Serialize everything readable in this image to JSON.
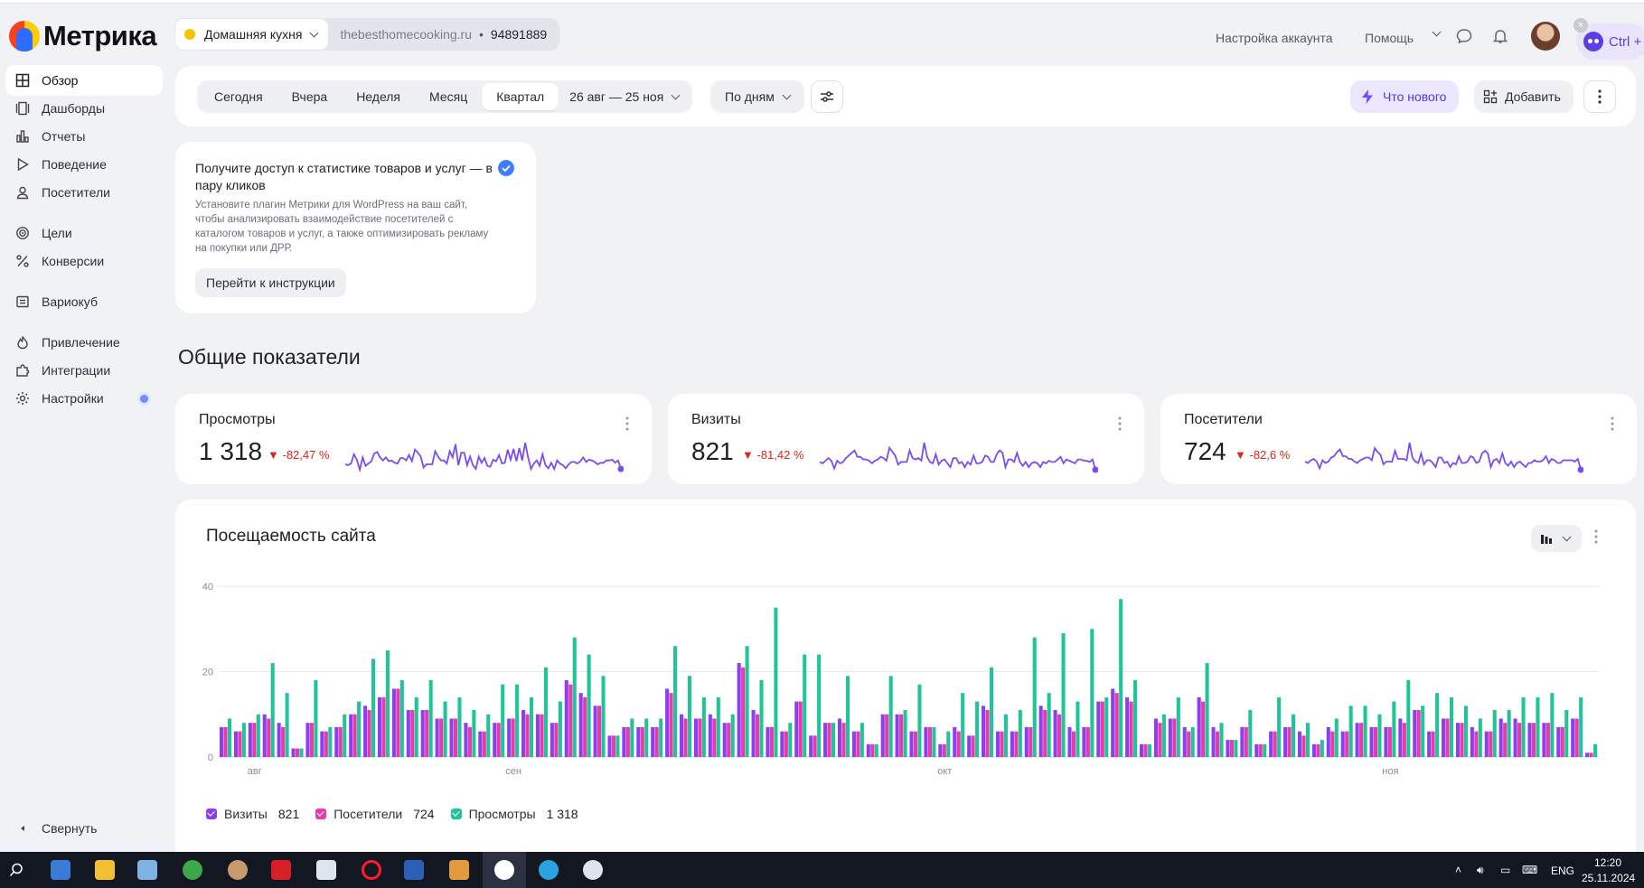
{
  "app": {
    "logo_text": "Метрика"
  },
  "counter": {
    "name": "Домашняя кухня",
    "site": "thebesthomecooking.ru",
    "separator": "•",
    "id": "94891889"
  },
  "header_links": {
    "account": "Настройка аккаунта",
    "help": "Помощь",
    "ctrl_badge": "Ctrl +"
  },
  "sidebar": {
    "items": [
      {
        "label": "Обзор",
        "icon": "grid-icon"
      },
      {
        "label": "Дашборды",
        "icon": "dashboards-icon"
      },
      {
        "label": "Отчеты",
        "icon": "bar-chart-icon"
      },
      {
        "label": "Поведение",
        "icon": "play-icon"
      },
      {
        "label": "Посетители",
        "icon": "user-icon"
      },
      {
        "label": "Цели",
        "icon": "target-icon"
      },
      {
        "label": "Конверсии",
        "icon": "percent-icon"
      },
      {
        "label": "Вариокуб",
        "icon": "cube-icon"
      },
      {
        "label": "Привлечение",
        "icon": "flame-icon"
      },
      {
        "label": "Интеграции",
        "icon": "puzzle-icon"
      },
      {
        "label": "Настройки",
        "icon": "gear-icon"
      }
    ],
    "collapse": "Свернуть"
  },
  "filters": {
    "periods": [
      "Сегодня",
      "Вчера",
      "Неделя",
      "Месяц",
      "Квартал"
    ],
    "active_period": "Квартал",
    "date_range": "26 авг — 25 ноя",
    "grouping": "По дням",
    "whats_new": "Что нового",
    "add": "Добавить"
  },
  "promo": {
    "title": "Получите доступ к статистике товаров и услуг — в пару кликов",
    "text": "Установите плагин Метрики для WordPress на ваш сайт, чтобы анализировать взаимодействие посетителей с каталогом товаров и услуг, а также оптимизировать рекламу на покупки или ДРР.",
    "button": "Перейти к инструкции"
  },
  "section_title": "Общие показатели",
  "metrics": [
    {
      "name": "Просмотры",
      "value": "1 318",
      "delta": "-82,47 %"
    },
    {
      "name": "Визиты",
      "value": "821",
      "delta": "-81,42 %"
    },
    {
      "name": "Посетители",
      "value": "724",
      "delta": "-82,6 %"
    }
  ],
  "colors": {
    "visits": "#8a3ff0",
    "visitors": "#e83aa8",
    "views": "#1fc49b",
    "accent": "#6b4bff",
    "negative": "#e2231a"
  },
  "chart_data": {
    "type": "bar",
    "title": "Посещаемость сайта",
    "ylim": [
      0,
      40
    ],
    "yticks": [
      "0",
      "20",
      "40"
    ],
    "month_labels": [
      {
        "label": "авг",
        "index": 2
      },
      {
        "label": "сен",
        "index": 20
      },
      {
        "label": "окт",
        "index": 50
      },
      {
        "label": "ноя",
        "index": 81
      }
    ],
    "series": [
      {
        "name": "Визиты",
        "values": [
          7,
          6,
          8,
          10,
          8,
          2,
          8,
          6,
          7,
          10,
          12,
          14,
          16,
          11,
          11,
          9,
          9,
          8,
          6,
          8,
          9,
          11,
          10,
          8,
          18,
          15,
          12,
          5,
          7,
          7,
          7,
          16,
          10,
          9,
          10,
          8,
          22,
          11,
          7,
          6,
          13,
          5,
          8,
          9,
          6,
          3,
          10,
          10,
          6,
          7,
          3,
          7,
          5,
          12,
          6,
          6,
          7,
          12,
          11,
          7,
          7,
          13,
          16,
          14,
          3,
          9,
          9,
          7,
          14,
          7,
          4,
          7,
          3,
          6,
          7,
          6,
          3,
          7,
          6,
          8,
          7,
          7,
          9,
          11,
          6,
          9,
          8,
          7,
          6,
          9,
          9,
          8,
          8,
          7,
          9,
          1
        ],
        "total": "821"
      },
      {
        "name": "Посетители",
        "values": [
          7,
          6,
          8,
          9,
          7,
          2,
          8,
          6,
          7,
          10,
          11,
          14,
          16,
          11,
          11,
          9,
          9,
          7,
          6,
          8,
          9,
          10,
          10,
          8,
          17,
          14,
          12,
          5,
          7,
          7,
          7,
          15,
          9,
          9,
          9,
          8,
          21,
          10,
          7,
          6,
          13,
          5,
          8,
          8,
          6,
          3,
          10,
          10,
          6,
          7,
          3,
          6,
          5,
          11,
          6,
          6,
          7,
          11,
          10,
          6,
          7,
          13,
          15,
          13,
          3,
          8,
          9,
          6,
          13,
          6,
          4,
          7,
          3,
          6,
          7,
          5,
          3,
          6,
          6,
          8,
          7,
          7,
          8,
          11,
          6,
          9,
          8,
          6,
          6,
          8,
          8,
          8,
          8,
          7,
          9,
          1
        ],
        "total": "724"
      },
      {
        "name": "Просмотры",
        "values": [
          9,
          8,
          10,
          22,
          15,
          2,
          18,
          7,
          10,
          13,
          23,
          25,
          18,
          14,
          18,
          13,
          14,
          11,
          10,
          17,
          17,
          14,
          21,
          13,
          28,
          24,
          19,
          5,
          9,
          9,
          9,
          26,
          19,
          14,
          14,
          10,
          26,
          18,
          35,
          8,
          24,
          24,
          8,
          19,
          8,
          3,
          19,
          11,
          17,
          7,
          6,
          15,
          13,
          21,
          10,
          11,
          28,
          15,
          29,
          13,
          30,
          14,
          37,
          18,
          3,
          10,
          14,
          7,
          22,
          8,
          4,
          11,
          3,
          14,
          10,
          8,
          4,
          9,
          12,
          12,
          10,
          13,
          18,
          12,
          15,
          14,
          12,
          9,
          11,
          11,
          14,
          14,
          15,
          11,
          14,
          3
        ],
        "total": "1 318"
      }
    ],
    "legend_position": "bottom-left"
  },
  "taskbar": {
    "time": "12:20",
    "date": "25.11.2024",
    "lang": "ENG"
  }
}
